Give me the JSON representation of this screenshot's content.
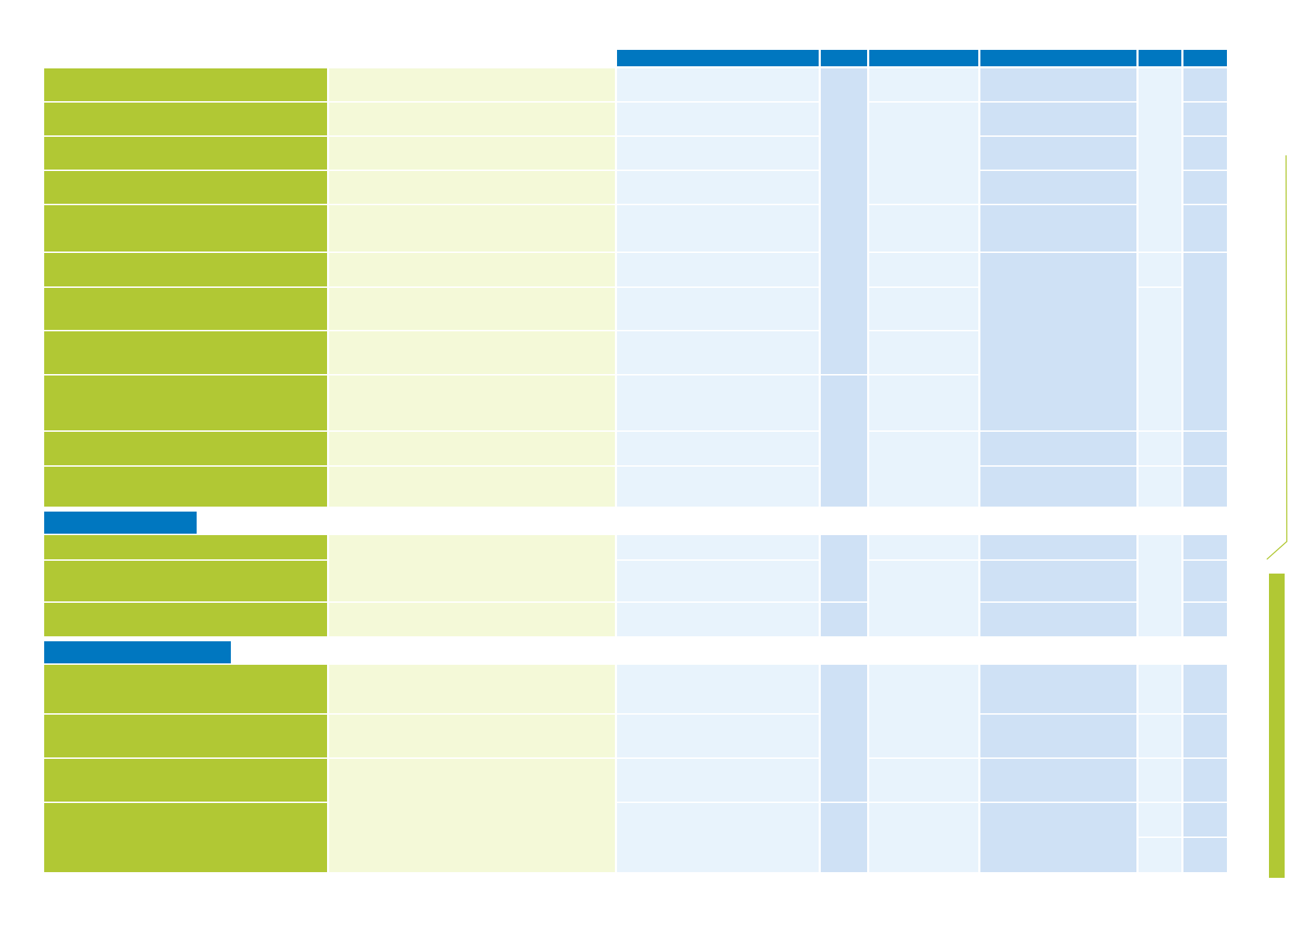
{
  "document": {
    "palette": {
      "header_blue": "#0077c0",
      "label_green": "#b1c834",
      "pale_green": "#f4f9d8",
      "light_blue": "#e8f3fc",
      "mid_blue": "#cfe1f5"
    },
    "header_columns": [
      "",
      "",
      "",
      "",
      "",
      ""
    ],
    "sections": [
      {
        "title": "",
        "row_count": 11
      },
      {
        "title": "",
        "row_count": 3
      },
      {
        "title": "",
        "row_count": 4
      }
    ]
  }
}
